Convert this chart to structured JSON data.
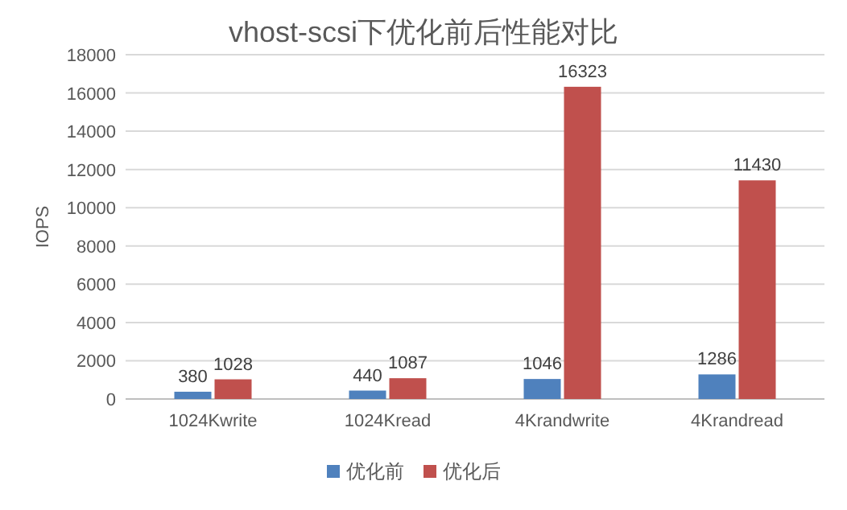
{
  "chart_data": {
    "type": "bar",
    "title": "vhost-scsi下优化前后性能对比",
    "ylabel": "IOPS",
    "categories": [
      "1024Kwrite",
      "1024Kread",
      "4Krandwrite",
      "4Krandread"
    ],
    "series": [
      {
        "name": "优化前",
        "color": "#4f81bd",
        "values": [
          380,
          440,
          1046,
          1286
        ]
      },
      {
        "name": "优化后",
        "color": "#c0504d",
        "values": [
          1028,
          1087,
          16323,
          11430
        ]
      }
    ],
    "ylim": [
      0,
      18000
    ],
    "yticks": [
      0,
      2000,
      4000,
      6000,
      8000,
      10000,
      12000,
      14000,
      16000,
      18000
    ],
    "grid": "y",
    "legend": "bottom",
    "data_labels": true
  }
}
